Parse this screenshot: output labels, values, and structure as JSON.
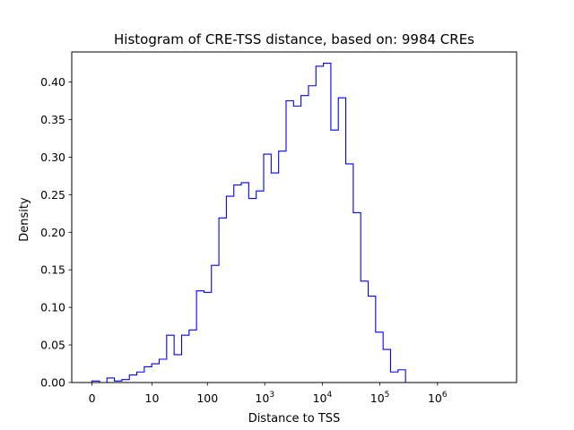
{
  "chart_data": {
    "type": "histogram",
    "title": "Histogram of CRE-TSS distance, based on: 9984 CREs",
    "xlabel": "Distance to TSS",
    "ylabel": "Density",
    "x_scale": "log-like (0 at origin, powers of ten)",
    "x_ticks": [
      {
        "value": 0,
        "label": "0"
      },
      {
        "value": 10,
        "label": "10"
      },
      {
        "value": 100,
        "label": "100"
      },
      {
        "value": 1000,
        "label": "10",
        "sup": "3"
      },
      {
        "value": 10000,
        "label": "10",
        "sup": "4"
      },
      {
        "value": 100000,
        "label": "10",
        "sup": "5"
      },
      {
        "value": 1000000,
        "label": "10",
        "sup": "6"
      }
    ],
    "ylim": [
      0,
      0.44
    ],
    "y_ticks": [
      "0.00",
      "0.05",
      "0.10",
      "0.15",
      "0.20",
      "0.25",
      "0.30",
      "0.35",
      "0.40"
    ],
    "color": "#0000ff",
    "density": [
      0.002,
      0.0,
      0.006,
      0.002,
      0.004,
      0.01,
      0.014,
      0.021,
      0.025,
      0.031,
      0.063,
      0.037,
      0.063,
      0.07,
      0.122,
      0.12,
      0.156,
      0.219,
      0.248,
      0.263,
      0.266,
      0.245,
      0.255,
      0.304,
      0.279,
      0.308,
      0.375,
      0.368,
      0.382,
      0.395,
      0.421,
      0.425,
      0.336,
      0.379,
      0.291,
      0.226,
      0.135,
      0.115,
      0.067,
      0.044,
      0.014,
      0.017,
      0.0,
      0.0,
      0.0,
      0.0,
      0.0,
      0.0,
      0.0,
      0.0,
      0.0,
      0.0,
      0.0,
      0.0
    ]
  }
}
